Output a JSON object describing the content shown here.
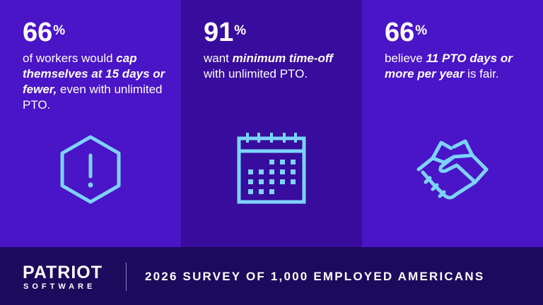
{
  "panels": [
    {
      "number": "66",
      "unit": "%",
      "text": [
        {
          "text": "of workers would ",
          "emphasis": false
        },
        {
          "text": "cap themselves at 15 days or fewer,",
          "emphasis": true
        },
        {
          "text": " even with unlimited PTO.",
          "emphasis": false
        }
      ]
    },
    {
      "number": "91",
      "unit": "%",
      "text": [
        {
          "text": "want ",
          "emphasis": false
        },
        {
          "text": "minimum time-off",
          "emphasis": true
        },
        {
          "text": " with unlimited PTO.",
          "emphasis": false
        }
      ]
    },
    {
      "number": "66",
      "unit": "%",
      "text": [
        {
          "text": "believe ",
          "emphasis": false
        },
        {
          "text": "11 PTO days or more per year",
          "emphasis": true
        },
        {
          "text": " is fair.",
          "emphasis": false
        }
      ]
    }
  ],
  "footer": {
    "logo_top": "PATRIOT",
    "logo_bottom": "SOFTWARE",
    "tagline": "2026 SURVEY OF 1,000 EMPLOYED AMERICANS"
  }
}
